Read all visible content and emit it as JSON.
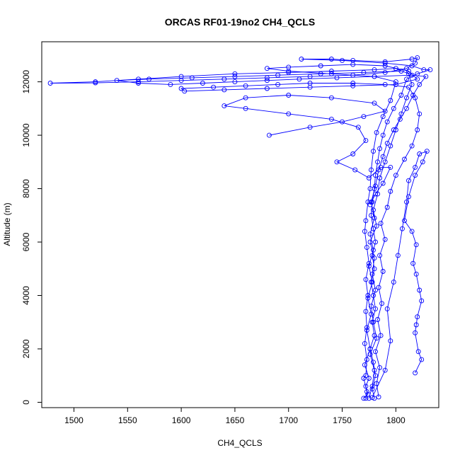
{
  "chart_data": {
    "type": "scatter",
    "title": "ORCAS RF01-19no2 CH4_QCLS",
    "xlabel": "CH4_QCLS",
    "ylabel": "Altitude (m)",
    "xlim": [
      1470,
      1840
    ],
    "ylim": [
      -200,
      13500
    ],
    "xticks": [
      1500,
      1550,
      1600,
      1650,
      1700,
      1750,
      1800
    ],
    "yticks": [
      0,
      2000,
      4000,
      6000,
      8000,
      10000,
      12000
    ],
    "grid": false,
    "legend": "none",
    "marker": "open-circle",
    "connected": true,
    "series": [
      {
        "color": "#0000ff",
        "points": [
          [
            1775,
            150
          ],
          [
            1778,
            600
          ],
          [
            1780,
            1200
          ],
          [
            1776,
            1800
          ],
          [
            1782,
            2400
          ],
          [
            1779,
            3000
          ],
          [
            1777,
            3600
          ],
          [
            1781,
            4200
          ],
          [
            1778,
            4800
          ],
          [
            1780,
            5400
          ],
          [
            1776,
            6000
          ],
          [
            1782,
            6600
          ],
          [
            1779,
            7200
          ],
          [
            1783,
            7800
          ],
          [
            1785,
            8400
          ],
          [
            1790,
            9000
          ],
          [
            1795,
            9600
          ],
          [
            1800,
            10200
          ],
          [
            1805,
            10800
          ],
          [
            1810,
            11400
          ],
          [
            1815,
            11900
          ],
          [
            1812,
            12300
          ],
          [
            1800,
            12500
          ],
          [
            1780,
            12450
          ],
          [
            1740,
            12400
          ],
          [
            1700,
            12350
          ],
          [
            1650,
            12300
          ],
          [
            1600,
            12200
          ],
          [
            1560,
            12100
          ],
          [
            1520,
            12000
          ],
          [
            1478,
            11950
          ],
          [
            1520,
            11960
          ],
          [
            1560,
            12000
          ],
          [
            1600,
            12050
          ],
          [
            1640,
            12100
          ],
          [
            1680,
            12150
          ],
          [
            1720,
            12200
          ],
          [
            1760,
            12250
          ],
          [
            1790,
            12350
          ],
          [
            1810,
            12500
          ],
          [
            1818,
            12700
          ],
          [
            1820,
            12900
          ],
          [
            1815,
            12850
          ],
          [
            1790,
            12750
          ],
          [
            1760,
            12800
          ],
          [
            1740,
            12850
          ],
          [
            1712,
            12850
          ],
          [
            1750,
            12800
          ],
          [
            1790,
            12700
          ],
          [
            1815,
            12600
          ],
          [
            1826,
            12450
          ],
          [
            1832,
            12450
          ],
          [
            1820,
            12300
          ],
          [
            1810,
            12100
          ],
          [
            1805,
            11500
          ],
          [
            1798,
            11000
          ],
          [
            1792,
            10500
          ],
          [
            1788,
            10000
          ],
          [
            1785,
            9500
          ],
          [
            1783,
            9000
          ],
          [
            1781,
            8500
          ],
          [
            1780,
            8000
          ],
          [
            1778,
            7500
          ],
          [
            1777,
            7000
          ],
          [
            1779,
            6500
          ],
          [
            1781,
            6000
          ],
          [
            1778,
            5500
          ],
          [
            1780,
            5000
          ],
          [
            1777,
            4500
          ],
          [
            1779,
            4000
          ],
          [
            1781,
            3500
          ],
          [
            1778,
            3000
          ],
          [
            1780,
            2500
          ],
          [
            1776,
            2000
          ],
          [
            1779,
            1500
          ],
          [
            1781,
            1000
          ],
          [
            1778,
            500
          ],
          [
            1780,
            150
          ]
        ]
      },
      {
        "color": "#0000ff",
        "points": [
          [
            1784,
            200
          ],
          [
            1782,
            700
          ],
          [
            1785,
            1300
          ],
          [
            1781,
            1900
          ],
          [
            1786,
            2500
          ],
          [
            1783,
            3100
          ],
          [
            1787,
            3700
          ],
          [
            1784,
            4300
          ],
          [
            1788,
            4900
          ],
          [
            1785,
            5500
          ],
          [
            1790,
            6100
          ],
          [
            1786,
            6700
          ],
          [
            1792,
            7300
          ],
          [
            1795,
            7900
          ],
          [
            1800,
            8500
          ],
          [
            1808,
            9100
          ],
          [
            1815,
            9600
          ],
          [
            1820,
            10200
          ],
          [
            1822,
            10800
          ],
          [
            1818,
            11400
          ],
          [
            1812,
            11800
          ],
          [
            1790,
            11900
          ],
          [
            1760,
            11950
          ],
          [
            1720,
            11950
          ],
          [
            1690,
            11900
          ],
          [
            1660,
            11850
          ],
          [
            1630,
            11800
          ],
          [
            1600,
            11750
          ],
          [
            1603,
            11650
          ],
          [
            1640,
            11700
          ],
          [
            1680,
            11750
          ],
          [
            1720,
            11800
          ],
          [
            1760,
            11850
          ],
          [
            1800,
            11900
          ],
          [
            1820,
            12100
          ],
          [
            1812,
            12400
          ],
          [
            1790,
            12600
          ],
          [
            1760,
            12650
          ],
          [
            1730,
            12600
          ],
          [
            1700,
            12550
          ],
          [
            1680,
            12500
          ],
          [
            1700,
            12400
          ],
          [
            1740,
            12300
          ],
          [
            1780,
            12200
          ],
          [
            1800,
            12000
          ],
          [
            1795,
            11300
          ],
          [
            1788,
            10700
          ],
          [
            1782,
            10100
          ],
          [
            1779,
            9400
          ],
          [
            1777,
            8700
          ],
          [
            1776,
            8000
          ],
          [
            1774,
            7500
          ],
          [
            1772,
            6800
          ],
          [
            1771,
            6400
          ],
          [
            1773,
            5800
          ],
          [
            1775,
            5200
          ],
          [
            1772,
            4600
          ],
          [
            1774,
            4000
          ],
          [
            1772,
            3400
          ],
          [
            1773,
            2800
          ],
          [
            1771,
            2200
          ],
          [
            1773,
            1600
          ],
          [
            1772,
            1000
          ],
          [
            1770,
            900
          ],
          [
            1773,
            400
          ],
          [
            1772,
            150
          ]
        ]
      },
      {
        "color": "#0000ff",
        "points": [
          [
            1778,
            180
          ],
          [
            1790,
            1200
          ],
          [
            1795,
            2300
          ],
          [
            1792,
            3500
          ],
          [
            1798,
            4500
          ],
          [
            1802,
            5500
          ],
          [
            1806,
            6500
          ],
          [
            1810,
            7500
          ],
          [
            1812,
            8300
          ],
          [
            1818,
            8800
          ],
          [
            1822,
            9300
          ],
          [
            1829,
            9400
          ],
          [
            1825,
            9000
          ],
          [
            1818,
            8500
          ],
          [
            1812,
            7700
          ],
          [
            1808,
            6800
          ],
          [
            1815,
            6400
          ],
          [
            1819,
            5900
          ],
          [
            1816,
            5200
          ],
          [
            1819,
            4800
          ],
          [
            1822,
            4200
          ],
          [
            1824,
            3800
          ],
          [
            1820,
            3200
          ],
          [
            1819,
            2900
          ],
          [
            1818,
            2600
          ],
          [
            1821,
            1900
          ],
          [
            1824,
            1600
          ],
          [
            1818,
            1100
          ]
        ]
      },
      {
        "color": "#0000ff",
        "points": [
          [
            1682,
            10000
          ],
          [
            1720,
            10300
          ],
          [
            1750,
            10500
          ],
          [
            1770,
            10700
          ],
          [
            1790,
            10900
          ],
          [
            1780,
            11200
          ],
          [
            1740,
            11400
          ],
          [
            1700,
            11500
          ],
          [
            1660,
            11400
          ],
          [
            1640,
            11100
          ],
          [
            1660,
            11000
          ],
          [
            1700,
            10800
          ],
          [
            1740,
            10600
          ],
          [
            1765,
            10300
          ],
          [
            1772,
            9800
          ],
          [
            1760,
            9300
          ],
          [
            1745,
            9000
          ],
          [
            1762,
            8700
          ],
          [
            1775,
            8400
          ],
          [
            1786,
            8800
          ],
          [
            1795,
            8800
          ],
          [
            1788,
            8200
          ],
          [
            1781,
            7800
          ],
          [
            1776,
            7400
          ]
        ]
      },
      {
        "color": "#0000ff",
        "points": [
          [
            1770,
            150
          ],
          [
            1774,
            300
          ],
          [
            1772,
            600
          ],
          [
            1775,
            900
          ],
          [
            1771,
            1400
          ],
          [
            1776,
            2000
          ],
          [
            1773,
            2700
          ],
          [
            1777,
            3300
          ],
          [
            1774,
            3900
          ],
          [
            1778,
            4500
          ],
          [
            1775,
            5100
          ],
          [
            1779,
            5700
          ],
          [
            1776,
            6300
          ],
          [
            1780,
            6900
          ],
          [
            1777,
            7500
          ],
          [
            1781,
            8100
          ],
          [
            1784,
            8700
          ],
          [
            1788,
            9200
          ],
          [
            1792,
            9700
          ],
          [
            1798,
            10200
          ],
          [
            1804,
            10600
          ],
          [
            1810,
            11000
          ],
          [
            1816,
            11500
          ],
          [
            1822,
            11900
          ],
          [
            1828,
            12200
          ],
          [
            1815,
            12250
          ],
          [
            1780,
            12200
          ],
          [
            1745,
            12150
          ],
          [
            1710,
            12100
          ],
          [
            1680,
            12050
          ],
          [
            1650,
            12000
          ],
          [
            1620,
            11950
          ],
          [
            1590,
            11900
          ],
          [
            1560,
            11950
          ],
          [
            1540,
            12050
          ],
          [
            1570,
            12100
          ],
          [
            1610,
            12150
          ],
          [
            1650,
            12200
          ],
          [
            1690,
            12250
          ],
          [
            1730,
            12300
          ],
          [
            1770,
            12350
          ],
          [
            1805,
            12400
          ]
        ]
      }
    ]
  }
}
